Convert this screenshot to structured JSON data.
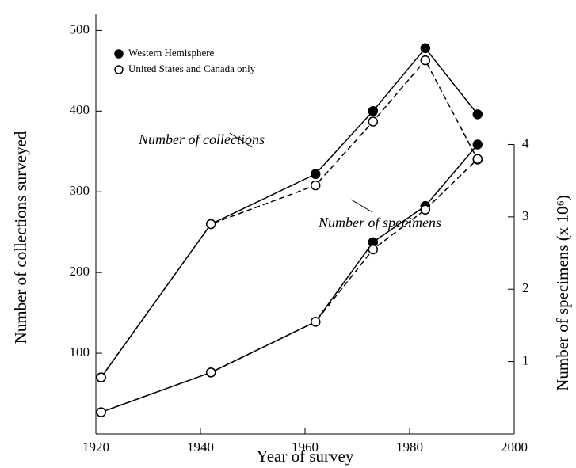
{
  "chart_data": {
    "type": "line",
    "x_label": "Year of survey",
    "y_label": "Number of collections surveyed",
    "y2_label": "Number of specimens (x 10⁶)",
    "annotations": [
      "Number of collections",
      "Number of specimens"
    ],
    "x": [
      1921,
      1942,
      1962,
      1973,
      1983,
      1993
    ],
    "xlim": [
      1920,
      2000
    ],
    "xticks": [
      1920,
      1940,
      1960,
      1980,
      2000
    ],
    "ylim": [
      0,
      520
    ],
    "yticks": [
      100,
      200,
      300,
      400,
      500
    ],
    "y2lim": [
      0,
      5.8
    ],
    "y2ticks": [
      1,
      2,
      3,
      4
    ],
    "legend": "upper left",
    "series": [
      {
        "name": "Western Hemisphere",
        "color": "#000000",
        "marker": "filled",
        "dash": false,
        "values": [
          70,
          260,
          322,
          400,
          478,
          396
        ]
      },
      {
        "name": "United States and Canada only",
        "color": "#000000",
        "marker": "open",
        "dash": true,
        "values": [
          70,
          260,
          308,
          387,
          463,
          340
        ]
      },
      {
        "color": "#000000",
        "marker": "filled",
        "dash": false,
        "axis": "y2",
        "values": [
          0.3,
          0.85,
          1.55,
          2.65,
          3.15,
          4.0
        ]
      },
      {
        "color": "#000000",
        "marker": "open",
        "dash": true,
        "axis": "y2",
        "values": [
          0.3,
          0.85,
          1.55,
          2.55,
          3.1,
          3.8
        ]
      }
    ]
  }
}
